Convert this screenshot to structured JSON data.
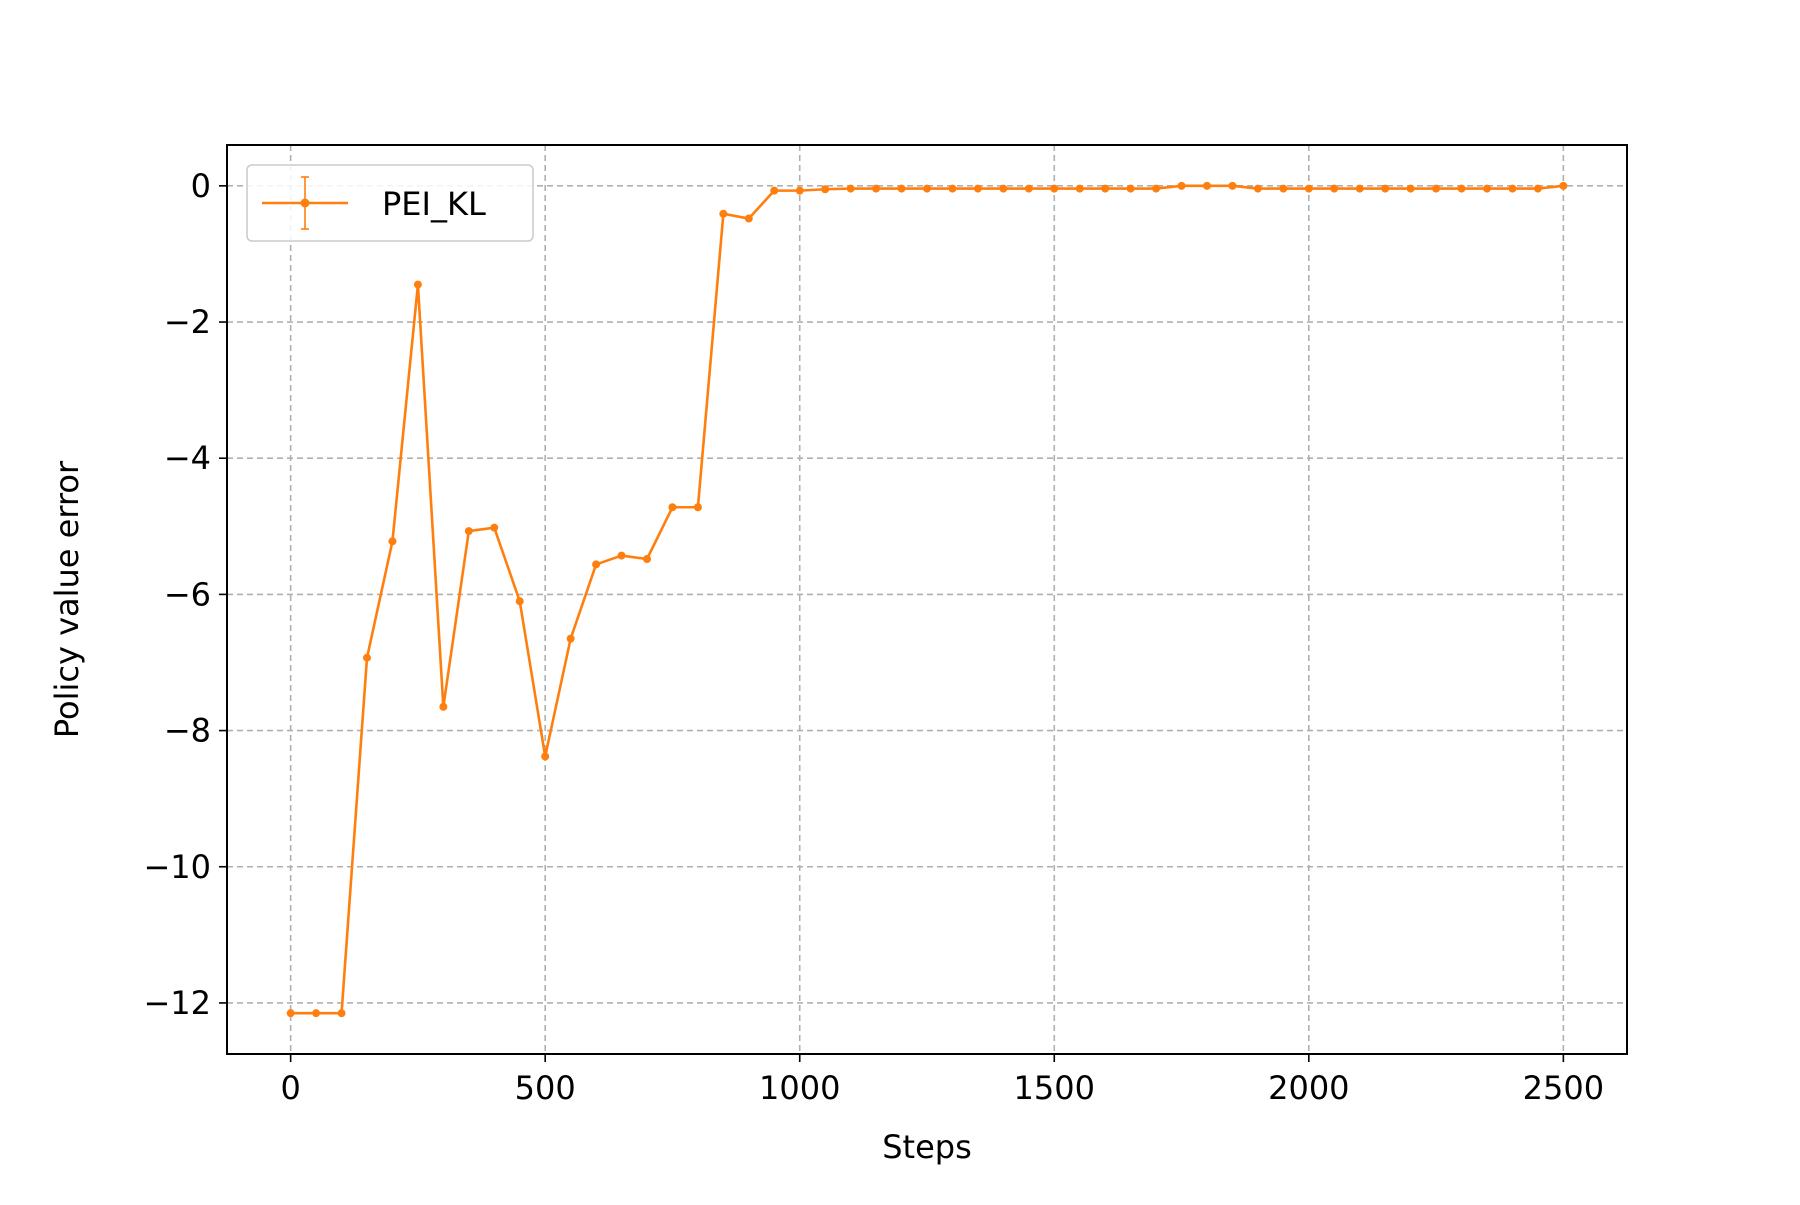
{
  "chart_data": {
    "type": "line",
    "xlabel": "Steps",
    "ylabel": "Policy value error",
    "xlim": [
      -125,
      2625
    ],
    "ylim": [
      -12.75,
      0.6
    ],
    "xticks": [
      0,
      500,
      1000,
      1500,
      2000,
      2500
    ],
    "xtick_labels": [
      "0",
      "500",
      "1000",
      "1500",
      "2000",
      "2500"
    ],
    "yticks": [
      0,
      -2,
      -4,
      -6,
      -8,
      -10,
      -12
    ],
    "ytick_labels": [
      "0",
      "−2",
      "−4",
      "−6",
      "−8",
      "−10",
      "−12"
    ],
    "grid": true,
    "legend_position": "upper-left",
    "series": [
      {
        "name": "PEI_KL",
        "color": "#ff7f0e",
        "marker": "dot",
        "errorbars": true,
        "x": [
          0,
          50,
          100,
          150,
          200,
          250,
          300,
          350,
          400,
          450,
          500,
          550,
          600,
          650,
          700,
          750,
          800,
          850,
          900,
          950,
          1000,
          1050,
          1100,
          1150,
          1200,
          1250,
          1300,
          1350,
          1400,
          1450,
          1500,
          1550,
          1600,
          1650,
          1700,
          1750,
          1800,
          1850,
          1900,
          1950,
          2000,
          2050,
          2100,
          2150,
          2200,
          2250,
          2300,
          2350,
          2400,
          2450,
          2500
        ],
        "y": [
          -12.15,
          -12.15,
          -12.15,
          -6.93,
          -5.22,
          -1.45,
          -7.65,
          -5.07,
          -5.02,
          -6.1,
          -8.38,
          -6.65,
          -5.56,
          -5.43,
          -5.48,
          -4.72,
          -4.72,
          -0.41,
          -0.48,
          -0.07,
          -0.07,
          -0.05,
          -0.04,
          -0.04,
          -0.04,
          -0.04,
          -0.04,
          -0.04,
          -0.04,
          -0.04,
          -0.04,
          -0.04,
          -0.04,
          -0.04,
          -0.04,
          0.0,
          0.0,
          0.0,
          -0.04,
          -0.04,
          -0.04,
          -0.04,
          -0.04,
          -0.04,
          -0.04,
          -0.04,
          -0.04,
          -0.04,
          -0.04,
          -0.04,
          0.0
        ]
      }
    ]
  }
}
